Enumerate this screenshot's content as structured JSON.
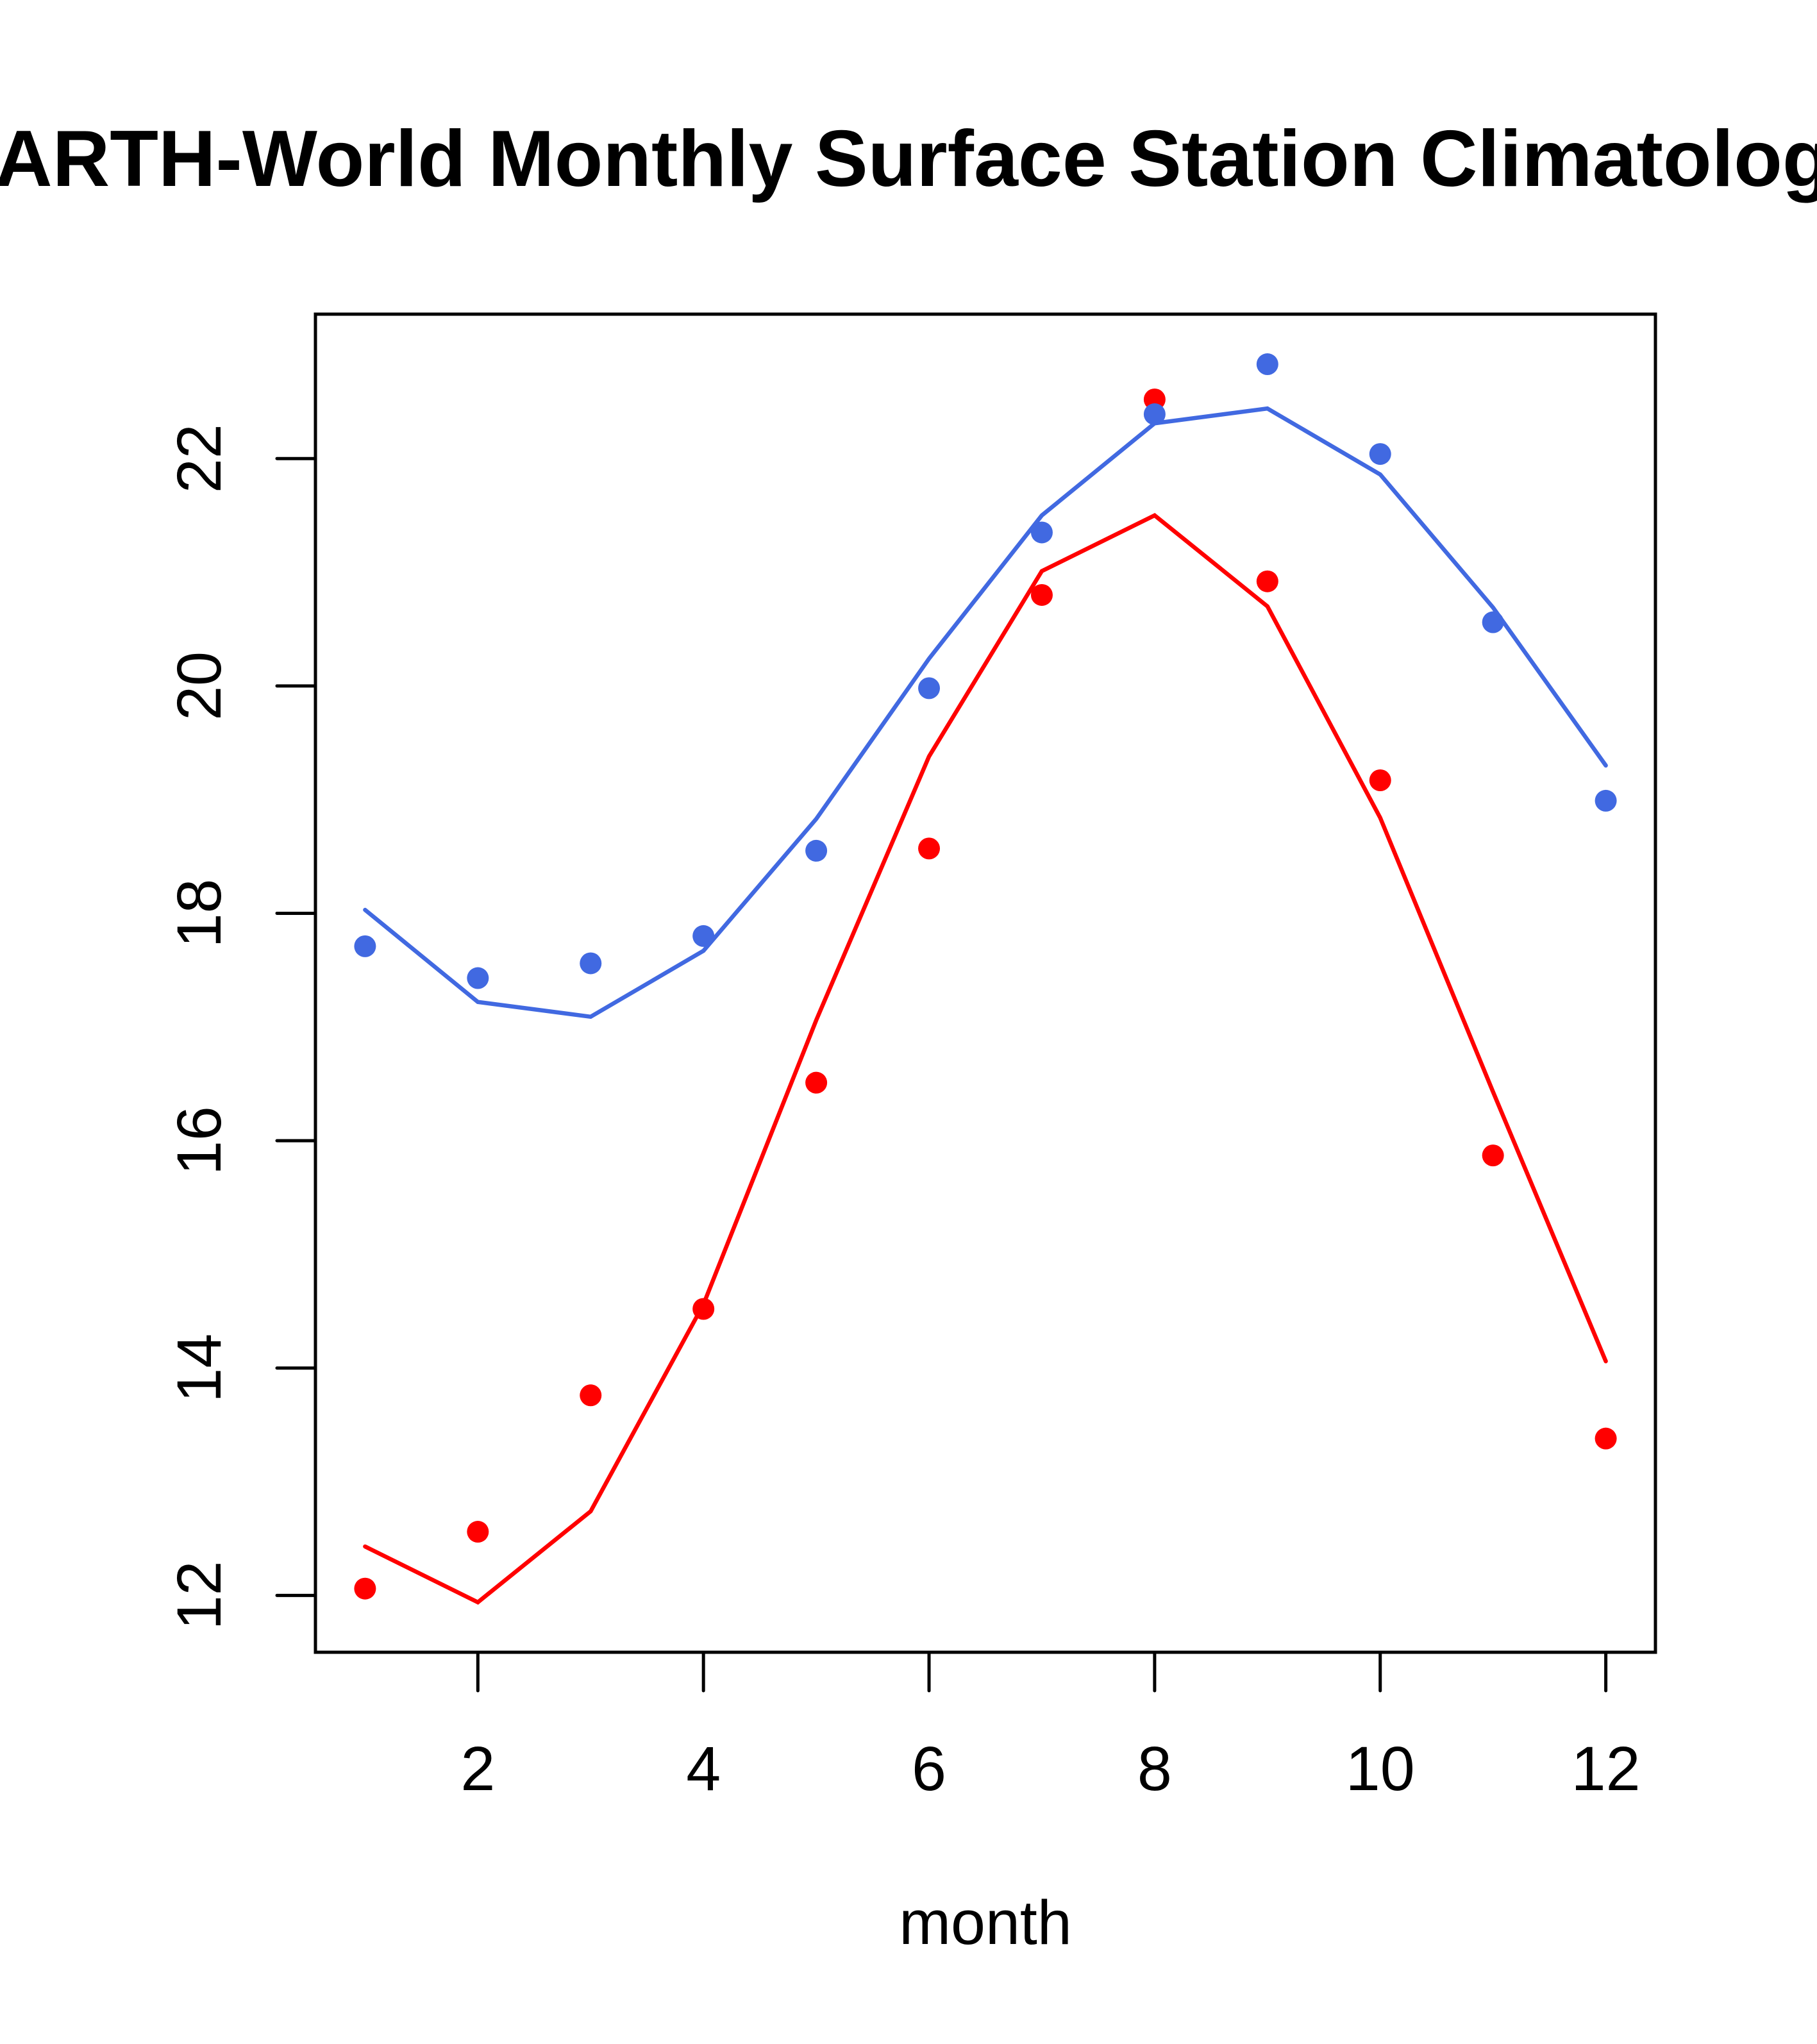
{
  "chart_data": {
    "type": "line",
    "title": "EARTH-World Monthly Surface Station Climatology",
    "xlabel": "month",
    "ylabel": "",
    "x": [
      1,
      2,
      3,
      4,
      5,
      6,
      7,
      8,
      9,
      10,
      11,
      12
    ],
    "xlim": [
      0.56,
      12.44
    ],
    "ylim": [
      11.5,
      23.27
    ],
    "x_ticks": [
      2,
      4,
      6,
      8,
      10,
      12
    ],
    "x_tick_labels": [
      "2",
      "4",
      "6",
      "8",
      "10",
      "12"
    ],
    "y_ticks": [
      12,
      14,
      16,
      18,
      20,
      22
    ],
    "y_tick_labels": [
      "12",
      "14",
      "16",
      "18",
      "20",
      "22"
    ],
    "grid": false,
    "legend": null,
    "series": [
      {
        "name": "red-points",
        "kind": "points",
        "color": "#FF0000",
        "values": [
          12.06,
          12.56,
          13.76,
          14.52,
          16.51,
          18.57,
          20.8,
          22.52,
          20.92,
          19.17,
          15.87,
          13.38
        ]
      },
      {
        "name": "red-line",
        "kind": "line",
        "color": "#FF0000",
        "values": [
          12.43,
          11.94,
          12.74,
          14.56,
          17.06,
          19.38,
          21.01,
          21.5,
          20.7,
          18.84,
          16.43,
          14.06
        ]
      },
      {
        "name": "blue-points",
        "kind": "points",
        "color": "#4169E1",
        "values": [
          17.71,
          17.43,
          17.56,
          17.8,
          18.55,
          19.98,
          21.35,
          22.39,
          22.83,
          22.04,
          20.56,
          18.99
        ]
      },
      {
        "name": "blue-line",
        "kind": "line",
        "color": "#4169E1",
        "values": [
          18.03,
          17.22,
          17.09,
          17.67,
          18.83,
          20.24,
          21.5,
          22.31,
          22.44,
          21.86,
          20.69,
          19.3
        ]
      }
    ]
  }
}
